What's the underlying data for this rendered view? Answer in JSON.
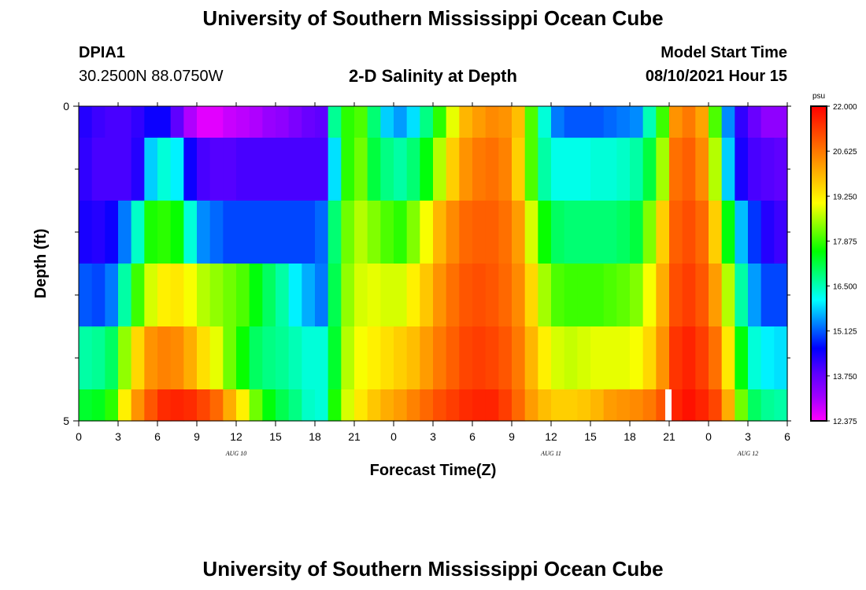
{
  "page": {
    "title_top": "University of Southern Mississippi Ocean Cube",
    "title_bottom": "University of Southern Mississippi Ocean Cube",
    "station_id": "DPIA1",
    "station_coords": "30.2500N  88.0750W",
    "subtitle": "2-D Salinity at Depth",
    "model_label": "Model Start Time",
    "model_time": "08/10/2021 Hour 15"
  },
  "colors": {
    "nowcast_marker": "#ffffff",
    "colormap": [
      "#ff00ff",
      "#a000ff",
      "#5a00ff",
      "#0000ff",
      "#0080ff",
      "#00ffff",
      "#00ff80",
      "#00ff00",
      "#80ff00",
      "#ffff00",
      "#ffc000",
      "#ff8000",
      "#ff4000",
      "#ff0000"
    ]
  },
  "chart_data": {
    "type": "heatmap",
    "title": "2-D Salinity at Depth",
    "xlabel": "Forecast Time(Z)",
    "ylabel": "Depth (ft)",
    "x_unit": "hours since Aug 10 00Z",
    "xlim": [
      0,
      54
    ],
    "ylim": [
      0,
      5
    ],
    "x_ticks": [
      {
        "x": 0,
        "label": "0"
      },
      {
        "x": 3,
        "label": "3"
      },
      {
        "x": 6,
        "label": "6"
      },
      {
        "x": 9,
        "label": "9"
      },
      {
        "x": 12,
        "label": "12"
      },
      {
        "x": 15,
        "label": "15"
      },
      {
        "x": 18,
        "label": "18"
      },
      {
        "x": 21,
        "label": "21"
      },
      {
        "x": 24,
        "label": "0"
      },
      {
        "x": 27,
        "label": "3"
      },
      {
        "x": 30,
        "label": "6"
      },
      {
        "x": 33,
        "label": "9"
      },
      {
        "x": 36,
        "label": "12"
      },
      {
        "x": 39,
        "label": "15"
      },
      {
        "x": 42,
        "label": "18"
      },
      {
        "x": 45,
        "label": "21"
      },
      {
        "x": 48,
        "label": "0"
      },
      {
        "x": 51,
        "label": "3"
      },
      {
        "x": 54,
        "label": "6"
      }
    ],
    "date_labels": [
      {
        "x": 12,
        "label": "AUG  10"
      },
      {
        "x": 36,
        "label": "AUG  11"
      },
      {
        "x": 51,
        "label": "AUG  12"
      }
    ],
    "y_ticks": [
      {
        "y": 0,
        "label": "0"
      },
      {
        "y": 5,
        "label": "5"
      }
    ],
    "y_minor_ticks": [
      1,
      2,
      3,
      4
    ],
    "layers": [
      {
        "top": 0,
        "bottom": 0.5
      },
      {
        "top": 0.5,
        "bottom": 1.5
      },
      {
        "top": 1.5,
        "bottom": 2.5
      },
      {
        "top": 2.5,
        "bottom": 3.5
      },
      {
        "top": 3.5,
        "bottom": 4.5
      },
      {
        "top": 4.5,
        "bottom": 5
      }
    ],
    "time_steps": [
      0,
      1,
      2,
      3,
      4,
      5,
      6,
      7,
      8,
      9,
      10,
      11,
      12,
      13,
      14,
      15,
      16,
      17,
      18,
      19,
      20,
      21,
      22,
      23,
      24,
      25,
      26,
      27,
      28,
      29,
      30,
      31,
      32,
      33,
      34,
      35,
      36,
      37,
      38,
      39,
      40,
      41,
      42,
      43,
      44,
      45,
      46,
      47,
      48,
      49,
      50,
      51,
      52,
      53
    ],
    "values": [
      [
        14.3,
        14.1,
        14.0,
        14.0,
        14.2,
        14.5,
        14.5,
        13.8,
        13.0,
        12.6,
        12.6,
        12.8,
        12.9,
        13.0,
        13.2,
        13.3,
        13.5,
        13.7,
        13.8,
        16.7,
        17.8,
        18.0,
        16.9,
        15.8,
        15.5,
        15.9,
        16.8,
        17.8,
        18.9,
        19.9,
        20.2,
        20.4,
        20.3,
        19.8,
        18.0,
        16.3,
        15.3,
        15.1,
        15.1,
        15.1,
        15.2,
        15.3,
        15.4,
        16.5,
        17.9,
        20.3,
        20.6,
        20.1,
        18.0,
        15.4,
        14.2,
        13.7,
        13.3,
        13.3
      ],
      [
        14.2,
        14.0,
        14.0,
        14.0,
        14.3,
        15.8,
        16.3,
        16.0,
        14.5,
        14.0,
        13.9,
        13.9,
        14.0,
        14.0,
        14.0,
        14.0,
        14.0,
        14.0,
        14.0,
        15.9,
        17.8,
        18.2,
        17.2,
        16.8,
        16.6,
        16.9,
        17.5,
        18.6,
        19.6,
        20.3,
        20.6,
        20.7,
        20.5,
        19.6,
        18.0,
        16.6,
        16.2,
        16.2,
        16.2,
        16.3,
        16.3,
        16.4,
        16.6,
        17.2,
        18.5,
        20.7,
        20.9,
        20.4,
        18.6,
        15.8,
        14.4,
        14.0,
        13.9,
        13.8
      ],
      [
        14.4,
        14.3,
        14.5,
        15.3,
        16.4,
        17.7,
        17.8,
        17.6,
        16.3,
        15.4,
        15.2,
        15.0,
        15.0,
        15.0,
        15.0,
        15.0,
        15.0,
        15.0,
        15.2,
        16.9,
        18.2,
        18.6,
        18.3,
        18.0,
        17.8,
        18.3,
        19.0,
        19.9,
        20.4,
        20.8,
        20.9,
        20.9,
        20.7,
        20.2,
        18.8,
        17.6,
        17.0,
        16.9,
        16.9,
        16.9,
        16.9,
        17.0,
        17.2,
        18.3,
        19.6,
        20.9,
        21.1,
        20.8,
        19.6,
        17.5,
        15.7,
        14.9,
        14.3,
        14.1
      ],
      [
        15.1,
        15.0,
        15.3,
        16.6,
        17.9,
        18.8,
        19.2,
        19.3,
        19.0,
        18.6,
        18.4,
        18.2,
        18.0,
        17.5,
        17.0,
        16.6,
        16.0,
        15.6,
        15.3,
        17.1,
        18.4,
        18.8,
        18.9,
        18.8,
        18.8,
        19.2,
        19.7,
        20.3,
        20.7,
        21.0,
        21.1,
        21.0,
        20.8,
        20.4,
        19.5,
        18.5,
        18.0,
        17.9,
        17.9,
        17.9,
        18.0,
        18.1,
        18.3,
        19.0,
        20.0,
        21.1,
        21.3,
        21.0,
        20.2,
        18.6,
        16.6,
        15.5,
        15.0,
        15.0
      ],
      [
        16.6,
        16.7,
        17.0,
        18.4,
        19.5,
        20.3,
        20.5,
        20.4,
        20.0,
        19.4,
        18.9,
        18.2,
        17.6,
        17.0,
        16.8,
        16.7,
        16.5,
        16.3,
        16.3,
        17.3,
        18.6,
        19.0,
        19.2,
        19.4,
        19.6,
        19.8,
        20.2,
        20.6,
        20.9,
        21.2,
        21.3,
        21.2,
        21.0,
        20.6,
        19.9,
        19.2,
        18.8,
        18.7,
        18.8,
        18.9,
        18.9,
        18.9,
        19.0,
        19.5,
        20.3,
        21.4,
        21.6,
        21.3,
        20.7,
        19.3,
        17.5,
        16.3,
        16.0,
        15.9
      ],
      [
        17.3,
        17.4,
        17.8,
        19.2,
        20.3,
        21.0,
        21.5,
        21.6,
        21.5,
        21.2,
        20.8,
        20.0,
        19.2,
        18.2,
        17.5,
        17.1,
        16.8,
        16.4,
        16.3,
        17.7,
        18.8,
        19.3,
        19.7,
        20.0,
        20.2,
        20.5,
        20.8,
        21.1,
        21.3,
        21.5,
        21.6,
        21.6,
        21.3,
        20.8,
        20.2,
        19.8,
        19.6,
        19.6,
        19.7,
        19.9,
        20.2,
        20.3,
        20.4,
        20.6,
        21.0,
        21.6,
        21.8,
        21.6,
        21.2,
        20.0,
        18.2,
        17.0,
        16.7,
        16.6
      ]
    ],
    "nowcast_marker_x": 45,
    "nowcast_marker_layer": 5,
    "colorbar": {
      "unit": "psu",
      "min": 12.375,
      "max": 22.0,
      "labels": [
        "22.000",
        "20.625",
        "19.250",
        "17.875",
        "16.500",
        "15.125",
        "13.750",
        "12.375"
      ]
    }
  }
}
